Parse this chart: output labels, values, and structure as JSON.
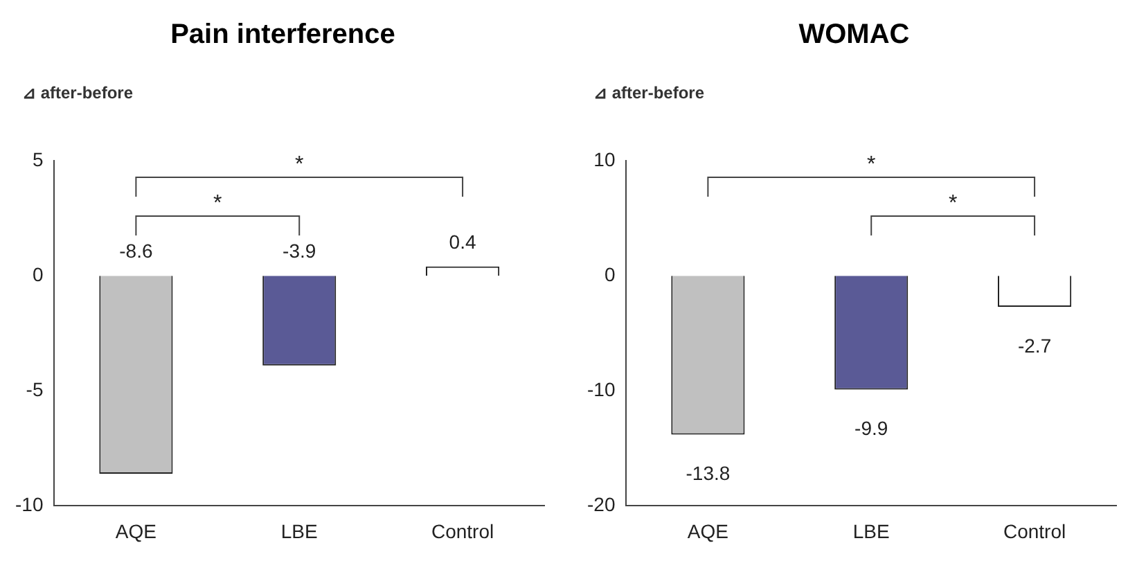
{
  "chart_data": [
    {
      "type": "bar",
      "title": "Pain interference",
      "ylabel": "⊿ after-before",
      "categories": [
        "AQE",
        "LBE",
        "Control"
      ],
      "values": [
        -8.6,
        -3.9,
        0.4
      ],
      "colors": [
        "#c0c0c0",
        "#5a5a96",
        "#ffffff"
      ],
      "ylim": [
        -10,
        5
      ],
      "yticks": [
        -10,
        -5,
        0,
        5
      ],
      "grid": false,
      "legend": false,
      "data_labels": true,
      "annotations": [
        "*",
        "*"
      ]
    },
    {
      "type": "bar",
      "title": "WOMAC",
      "ylabel": "⊿ after-before",
      "categories": [
        "AQE",
        "LBE",
        "Control"
      ],
      "values": [
        -13.8,
        -9.9,
        -2.7
      ],
      "colors": [
        "#c0c0c0",
        "#5a5a96",
        "#ffffff"
      ],
      "ylim": [
        -20,
        10
      ],
      "yticks": [
        -20,
        -10,
        0,
        10
      ],
      "grid": false,
      "legend": false,
      "data_labels": true,
      "annotations": [
        "*",
        "*"
      ]
    }
  ]
}
